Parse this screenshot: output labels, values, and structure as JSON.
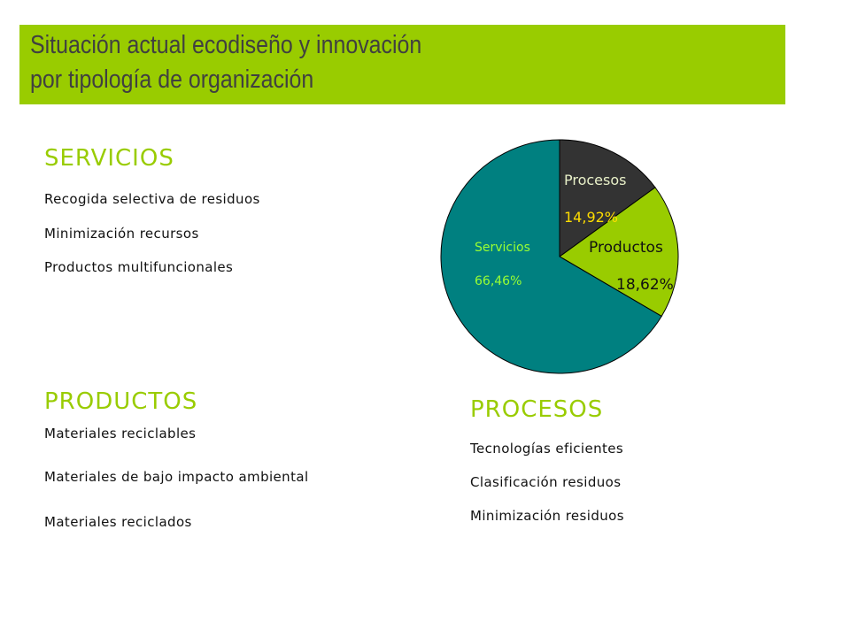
{
  "title": {
    "line1": "Situación actual ecodiseño y innovación",
    "line2": "por tipología de organización"
  },
  "servicios": {
    "heading": "SERVICIOS",
    "items": [
      "Recogida selectiva de residuos",
      "Minimización recursos",
      "Productos multifuncionales"
    ]
  },
  "productos": {
    "heading": "PRODUCTOS",
    "items": [
      "Materiales reciclables",
      "Materiales de bajo impacto ambiental",
      "Materiales reciclados"
    ]
  },
  "procesos": {
    "heading": "PROCESOS",
    "items": [
      "Tecnologías eficientes",
      "Clasificación residuos",
      "Minimización residuos"
    ]
  },
  "colors": {
    "title_bg": "#99cc00",
    "heading": "#99cc00"
  },
  "chart_data": {
    "type": "pie",
    "slices": [
      {
        "name": "Procesos",
        "value": 14.92,
        "label": "14,92%",
        "color": "#333333"
      },
      {
        "name": "Productos",
        "value": 18.62,
        "label": "18,62%",
        "color": "#99cc00"
      },
      {
        "name": "Servicios",
        "value": 66.46,
        "label": "66,46%",
        "color": "#008080"
      }
    ],
    "start_angle": "12 o'clock",
    "direction": "clockwise"
  }
}
